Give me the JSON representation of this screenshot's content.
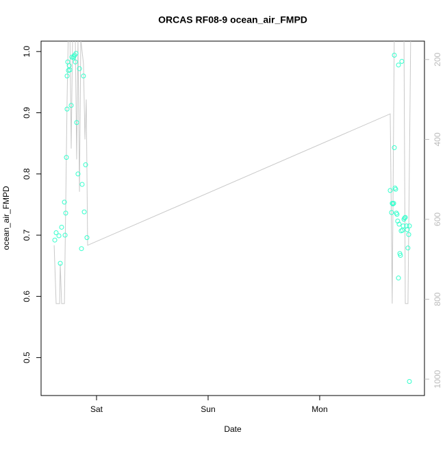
{
  "chart_data": {
    "type": "scatter",
    "title": "ORCAS RF08-9 ocean_air_FMPD",
    "xlabel": "Date",
    "ylabel": "ocean_air_FMPD",
    "xlim": [
      -0.497,
      2.939
    ],
    "xticks": [
      {
        "value": 0,
        "label": "Sat"
      },
      {
        "value": 1,
        "label": "Sun"
      },
      {
        "value": 2,
        "label": "Mon"
      }
    ],
    "ylim": [
      0.438,
      1.017
    ],
    "yticks": [
      0.5,
      0.6,
      0.7,
      0.8,
      0.9,
      {
        "value": 1,
        "label": "1.0"
      }
    ],
    "y2lim": [
      1041,
      154
    ],
    "y2ticks": [
      200,
      400,
      600,
      800,
      1000
    ],
    "series": [
      {
        "mark": "circle",
        "color": "#33ffcc",
        "x": [
          -0.374,
          -0.362,
          -0.337,
          -0.325,
          -0.313,
          -0.288,
          -0.282,
          -0.276,
          -0.27,
          -0.264,
          -0.264,
          -0.258,
          -0.252,
          -0.245,
          -0.239,
          -0.227,
          -0.221,
          -0.209,
          -0.203,
          -0.196,
          -0.19,
          -0.184,
          -0.178,
          -0.166,
          -0.153,
          -0.135,
          -0.129,
          -0.117,
          -0.11,
          -0.098,
          -0.086,
          2.632,
          2.644,
          2.65,
          2.656,
          2.663,
          2.669,
          2.669,
          2.675,
          2.681,
          2.687,
          2.693,
          2.699,
          2.706,
          2.706,
          2.712,
          2.718,
          2.724,
          2.73,
          2.736,
          2.742,
          2.748,
          2.755,
          2.761,
          2.767,
          2.779,
          2.785,
          2.791,
          2.798,
          2.804,
          2.804
        ],
        "values": [
          0.692,
          0.704,
          0.699,
          0.654,
          0.713,
          0.754,
          0.7,
          0.736,
          0.827,
          0.906,
          0.96,
          0.983,
          0.969,
          0.977,
          0.97,
          0.912,
          0.991,
          0.99,
          0.992,
          0.994,
          0.983,
          0.997,
          0.884,
          0.8,
          0.972,
          0.678,
          0.783,
          0.96,
          0.738,
          0.815,
          0.696,
          0.773,
          0.737,
          0.752,
          0.751,
          0.752,
          0.994,
          0.843,
          0.777,
          0.775,
          0.736,
          0.734,
          0.723,
          0.978,
          0.63,
          0.718,
          0.67,
          0.667,
          0.707,
          0.984,
          0.708,
          0.715,
          0.726,
          0.728,
          0.729,
          0.715,
          0.709,
          0.679,
          0.701,
          0.715,
          0.461
        ]
      },
      {
        "mark": "line",
        "color": "#c8c8c8",
        "axis": "y2",
        "x": [
          -0.38,
          -0.362,
          -0.331,
          -0.325,
          -0.313,
          -0.288,
          -0.264,
          -0.252,
          -0.239,
          -0.227,
          -0.215,
          -0.19,
          -0.178,
          -0.166,
          -0.153,
          -0.141,
          -0.117,
          -0.104,
          -0.092,
          -0.08,
          2.632,
          2.65,
          2.669,
          2.755,
          2.767,
          2.791,
          2.81,
          2.816
        ],
        "values": [
          665,
          811,
          811,
          711,
          811,
          811,
          300,
          120,
          120,
          423,
          150,
          150,
          450,
          150,
          531,
          150,
          210,
          400,
          300,
          665,
          336,
          811,
          120,
          120,
          811,
          811,
          300,
          120
        ]
      }
    ]
  }
}
